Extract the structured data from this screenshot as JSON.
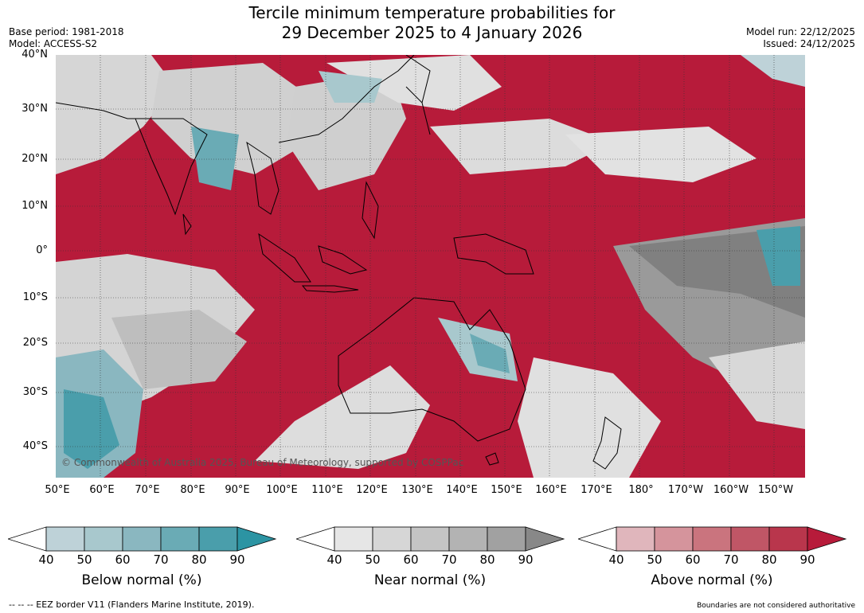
{
  "title": {
    "line1": "Tercile minimum temperature probabilities for",
    "line2": "29 December 2025 to 4 January 2026"
  },
  "meta_left": {
    "base_period": "Base period: 1981-2018",
    "model": "Model: ACCESS-S2"
  },
  "meta_right": {
    "model_run": "Model run: 22/12/2025",
    "issued": "Issued: 24/12/2025"
  },
  "map": {
    "lat_labels": [
      "40°N",
      "30°N",
      "20°N",
      "10°N",
      "0°",
      "10°S",
      "20°S",
      "30°S",
      "40°S"
    ],
    "lon_labels": [
      "50°E",
      "60°E",
      "70°E",
      "80°E",
      "90°E",
      "100°E",
      "110°E",
      "120°E",
      "130°E",
      "140°E",
      "150°E",
      "160°E",
      "170°E",
      "180°",
      "170°W",
      "160°W",
      "150°W"
    ],
    "copyright": "© Commonwealth of Australia 2025, Bureau of Meteorology, supported by COSPPac",
    "colors": {
      "above": "#b71b3a",
      "near": "#8a8a8a",
      "below": "#2c94a3",
      "land_outline": "#000000"
    }
  },
  "colorbars": [
    {
      "label": "Below normal (%)",
      "ticks": [
        "40",
        "50",
        "60",
        "70",
        "80",
        "90"
      ],
      "colors": [
        "#ffffff",
        "#bed2d8",
        "#a8c8cd",
        "#8ab7c0",
        "#6aabb5",
        "#4a9eab",
        "#2c94a3"
      ]
    },
    {
      "label": "Near normal (%)",
      "ticks": [
        "40",
        "50",
        "60",
        "70",
        "80",
        "90"
      ],
      "colors": [
        "#ffffff",
        "#e6e6e6",
        "#d6d6d6",
        "#c4c4c4",
        "#b3b3b3",
        "#a1a1a1",
        "#888888"
      ]
    },
    {
      "label": "Above normal (%)",
      "ticks": [
        "40",
        "50",
        "60",
        "70",
        "80",
        "90"
      ],
      "colors": [
        "#ffffff",
        "#e0b6bc",
        "#d5949c",
        "#ca747e",
        "#c05666",
        "#b9364c",
        "#b71b3a"
      ]
    }
  ],
  "footer": {
    "eez": "--  --  -- EEZ border V11 (Flanders Marine Institute, 2019).",
    "disclaimer": "Boundaries are not considered authoritative"
  }
}
